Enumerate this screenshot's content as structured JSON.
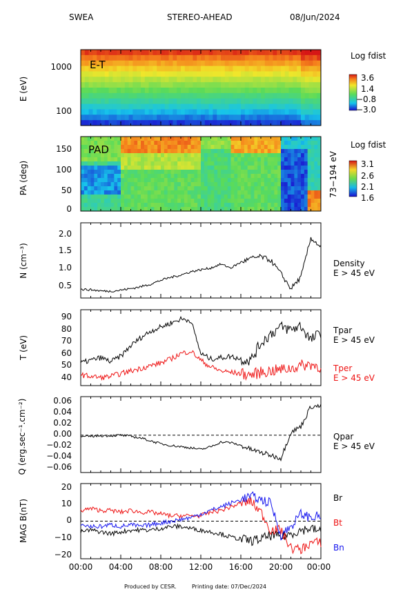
{
  "header": {
    "instrument": "SWEA",
    "spacecraft": "STEREO-AHEAD",
    "date": "08/Jun/2024"
  },
  "footer": {
    "produced": "Produced by CESR.",
    "printing": "Printing date: 07/Dec/2024"
  },
  "chart_data": [
    {
      "type": "heatmap",
      "panel": "energy-time",
      "inset_label": "E-T",
      "ylabel": "E (eV)",
      "yscale": "log",
      "yticks": [
        "1000",
        "100"
      ],
      "ylim": [
        50,
        2200
      ],
      "colorbar": {
        "title": "Log fdist",
        "ticks": [
          "3.6",
          "1.4",
          "−0.8",
          "−3.0"
        ],
        "range": [
          -3.0,
          3.6
        ]
      }
    },
    {
      "type": "heatmap",
      "panel": "pitch-angle",
      "inset_label": "PAD",
      "ylabel": "PA (deg)",
      "yticks": [
        "150",
        "100",
        "50",
        "0"
      ],
      "ylim": [
        0,
        180
      ],
      "side_label": "73−194 eV",
      "colorbar": {
        "title": "Log fdist",
        "ticks": [
          "3.1",
          "2.6",
          "2.1",
          "1.6"
        ],
        "range": [
          1.5,
          3.2
        ]
      }
    },
    {
      "type": "line",
      "panel": "density",
      "ylabel": "N (cm⁻³)",
      "yticks": [
        "2.0",
        "1.5",
        "1.0",
        "0.5"
      ],
      "ylim": [
        0.25,
        2.25
      ],
      "series": [
        {
          "name": "Density",
          "sub": "E > 45 eV",
          "color": "#000000",
          "x": [
            0,
            1,
            2,
            3,
            4,
            5,
            6,
            7,
            8,
            9,
            10,
            11,
            12,
            13,
            14,
            15,
            16,
            17,
            18,
            19,
            20,
            21,
            22,
            23,
            24
          ],
          "y": [
            0.48,
            0.47,
            0.44,
            0.43,
            0.46,
            0.5,
            0.55,
            0.62,
            0.72,
            0.8,
            0.86,
            0.95,
            1.0,
            1.05,
            1.15,
            1.05,
            1.2,
            1.3,
            1.35,
            1.25,
            0.9,
            0.5,
            0.8,
            1.85,
            1.6
          ]
        }
      ]
    },
    {
      "type": "line",
      "panel": "temperature",
      "ylabel": "T (eV)",
      "yticks": [
        "90",
        "80",
        "70",
        "60",
        "50",
        "40"
      ],
      "ylim": [
        36,
        93
      ],
      "series": [
        {
          "name": "Tpar",
          "sub": "E > 45 eV",
          "color": "#000000",
          "x": [
            0,
            1,
            2,
            3,
            4,
            5,
            6,
            7,
            8,
            9,
            10,
            11,
            12,
            13,
            14,
            15,
            16,
            17,
            18,
            19,
            20,
            21,
            22,
            23,
            24
          ],
          "y": [
            53,
            55,
            57,
            54,
            58,
            66,
            72,
            77,
            80,
            83,
            86,
            85,
            60,
            56,
            57,
            58,
            56,
            55,
            68,
            75,
            80,
            78,
            81,
            70,
            76
          ]
        },
        {
          "name": "Tper",
          "sub": "E > 45 eV",
          "color": "#ee1111",
          "x": [
            0,
            1,
            2,
            3,
            4,
            5,
            6,
            7,
            8,
            9,
            10,
            11,
            12,
            13,
            14,
            15,
            16,
            17,
            18,
            19,
            20,
            21,
            22,
            23,
            24
          ],
          "y": [
            44,
            43,
            42,
            43,
            45,
            47,
            49,
            51,
            53,
            56,
            60,
            62,
            55,
            50,
            47,
            46,
            45,
            44,
            46,
            47,
            48,
            49,
            51,
            52,
            50
          ]
        }
      ]
    },
    {
      "type": "line",
      "panel": "heat-flux",
      "ylabel": "Q (erg.sec⁻¹.cm⁻²)",
      "yticks": [
        "0.06",
        "0.04",
        "0.02",
        "0.00",
        "−0.02",
        "−0.04",
        "−0.06"
      ],
      "ylim": [
        -0.065,
        0.067
      ],
      "series": [
        {
          "name": "Qpar",
          "sub": "E > 45 eV",
          "color": "#000000",
          "x": [
            0,
            1,
            2,
            3,
            4,
            5,
            6,
            7,
            8,
            9,
            10,
            11,
            12,
            13,
            14,
            15,
            16,
            17,
            18,
            19,
            20,
            21,
            22,
            23,
            24
          ],
          "y": [
            -0.003,
            -0.002,
            -0.001,
            -0.001,
            0,
            -0.002,
            -0.005,
            -0.01,
            -0.015,
            -0.018,
            -0.02,
            -0.022,
            -0.025,
            -0.02,
            -0.012,
            -0.013,
            -0.018,
            -0.025,
            -0.03,
            -0.035,
            -0.04,
            0.005,
            0.015,
            0.05,
            0.05
          ]
        }
      ]
    },
    {
      "type": "line",
      "panel": "magnetic-field",
      "ylabel": "MAG B(nT)",
      "yticks": [
        "20",
        "10",
        "0",
        "−10",
        "−20"
      ],
      "ylim": [
        -21,
        21
      ],
      "xlabel_ticks": [
        "00:00",
        "04:00",
        "08:00",
        "12:00",
        "16:00",
        "20:00",
        "00:00"
      ],
      "xlim": [
        0,
        24
      ],
      "series": [
        {
          "name": "Br",
          "color": "#000000",
          "x": [
            0,
            1,
            2,
            3,
            4,
            5,
            6,
            7,
            8,
            9,
            10,
            11,
            12,
            13,
            14,
            15,
            16,
            17,
            18,
            19,
            20,
            21,
            22,
            23,
            24
          ],
          "y": [
            -6,
            -5,
            -6,
            -7,
            -6,
            -5,
            -5,
            -5,
            -4,
            -3,
            -3,
            -4,
            -5,
            -6,
            -7,
            -9,
            -10,
            -11,
            -10,
            -8,
            -9,
            -7,
            -5,
            -4,
            -6
          ]
        },
        {
          "name": "Bt",
          "color": "#ee1111",
          "x": [
            0,
            1,
            2,
            3,
            4,
            5,
            6,
            7,
            8,
            9,
            10,
            11,
            12,
            13,
            14,
            15,
            16,
            17,
            18,
            19,
            20,
            21,
            22,
            23,
            24
          ],
          "y": [
            6,
            7,
            6,
            6,
            5,
            6,
            5,
            5,
            4,
            3,
            3,
            3,
            3,
            5,
            6,
            8,
            10,
            11,
            5,
            -5,
            -5,
            -15,
            -16,
            -12,
            -12
          ]
        },
        {
          "name": "Bn",
          "color": "#1515ee",
          "x": [
            0,
            1,
            2,
            3,
            4,
            5,
            6,
            7,
            8,
            9,
            10,
            11,
            12,
            13,
            14,
            15,
            16,
            17,
            18,
            19,
            20,
            21,
            22,
            23,
            24
          ],
          "y": [
            -2,
            -3,
            -3,
            -2,
            -3,
            -2,
            -3,
            -2,
            -1,
            0,
            1,
            2,
            4,
            6,
            8,
            10,
            12,
            14,
            12,
            10,
            -8,
            -3,
            4,
            2,
            3
          ]
        }
      ]
    }
  ]
}
